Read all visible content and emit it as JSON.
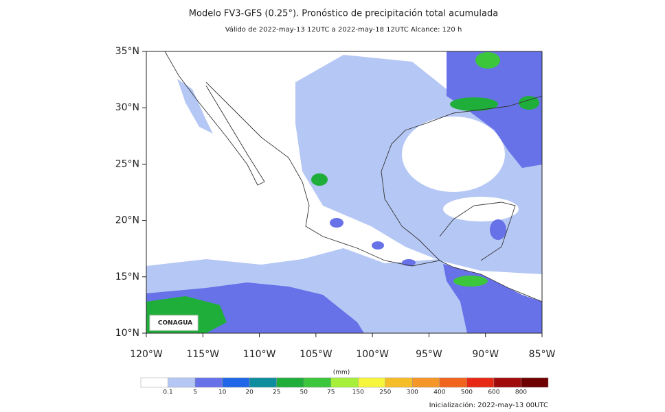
{
  "header": {
    "title": "Modelo FV3-GFS (0.25°). Pronóstico de precipitación total acumulada",
    "subtitle": "Válido de 2022-may-13 12UTC a 2022-may-18 12UTC    Alcance: 120 h"
  },
  "map": {
    "lat_labels": [
      "35°N",
      "30°N",
      "25°N",
      "20°N",
      "15°N",
      "10°N"
    ],
    "lon_labels": [
      "120°W",
      "115°W",
      "110°W",
      "105°W",
      "100°W",
      "95°W",
      "90°W",
      "85°W"
    ],
    "logo": "CONAGUA"
  },
  "colorbar": {
    "unit": "(mm)",
    "labels": [
      "0.1",
      "5",
      "10",
      "20",
      "25",
      "50",
      "75",
      "150",
      "250",
      "300",
      "400",
      "500",
      "600",
      "800"
    ],
    "colors": [
      "#ffffff",
      "#b5c7f4",
      "#6771e8",
      "#2066e8",
      "#0d8d9e",
      "#1fae3a",
      "#3cc63c",
      "#a6f03c",
      "#f5f53c",
      "#f5be28",
      "#f59628",
      "#f0641e",
      "#e62814",
      "#a00a0a",
      "#6e0000"
    ]
  },
  "footer": {
    "init": "Inicialización: 2022-may-13 00UTC"
  }
}
